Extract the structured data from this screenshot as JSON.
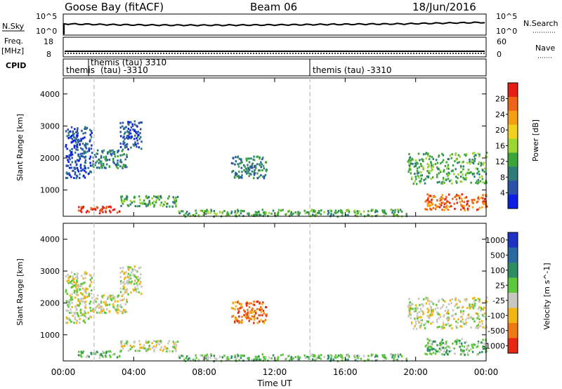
{
  "header": {
    "radar_title": "Goose Bay (fitACF)",
    "beam": "Beam 06",
    "date": "18/Jun/2016"
  },
  "strips": {
    "nsky_label": "N.Sky",
    "nsky_ticks": [
      "10^5",
      "10^0"
    ],
    "nsearch_label": "N.Search",
    "nsearch_ticks": [
      "10^5",
      "10^0"
    ],
    "freq_label": "Freq.",
    "freq_unit": "[MHz]",
    "freq_ticks": [
      "18",
      "8"
    ],
    "nave_label": "Nave",
    "nave_ticks": [
      "60",
      "0"
    ],
    "cpid_label": "CPID",
    "cpid_entries": [
      {
        "text": "themis",
        "start": 0.0
      },
      {
        "text": "themis (tau) 3310",
        "start": 1.75
      },
      {
        "text": "(tau) -3310",
        "start": 1.75,
        "row": 2
      },
      {
        "text": "themis (tau) -3310",
        "start": 14.0
      }
    ]
  },
  "chart_data": [
    {
      "type": "heatmap",
      "title": "",
      "quantity": "Power",
      "xlabel": "",
      "ylabel": "Slant Range [km]",
      "xlim": [
        0,
        24
      ],
      "ylim": [
        180,
        4500
      ],
      "x_ticks": [
        "00:00",
        "04:00",
        "08:00",
        "12:00",
        "16:00",
        "20:00",
        "00:00"
      ],
      "y_ticks": [
        1000,
        2000,
        3000,
        4000
      ],
      "colorbar": {
        "label": "Power [dB]",
        "ticks": [
          4,
          8,
          12,
          16,
          20,
          24,
          28
        ],
        "range": [
          0,
          32
        ],
        "colors": [
          "#0a1ee6",
          "#2a52a8",
          "#2e7c7a",
          "#3aa63a",
          "#9bd632",
          "#f0d21e",
          "#f5a014",
          "#ef6414",
          "#e61e14"
        ]
      },
      "regions": [
        {
          "t": [
            0.1,
            1.6
          ],
          "r": [
            1400,
            3000
          ],
          "level": 1
        },
        {
          "t": [
            1.6,
            3.6
          ],
          "r": [
            1700,
            2300
          ],
          "level": 2
        },
        {
          "t": [
            3.2,
            4.4
          ],
          "r": [
            2300,
            3200
          ],
          "level": 1
        },
        {
          "t": [
            0.8,
            3.2
          ],
          "r": [
            300,
            520
          ],
          "level": 8
        },
        {
          "t": [
            3.2,
            6.5
          ],
          "r": [
            500,
            850
          ],
          "level": 3
        },
        {
          "t": [
            6.5,
            19.5
          ],
          "r": [
            200,
            420
          ],
          "level": 3
        },
        {
          "t": [
            9.5,
            11.5
          ],
          "r": [
            1400,
            2100
          ],
          "level": 2
        },
        {
          "t": [
            19.5,
            24.0
          ],
          "r": [
            1200,
            2200
          ],
          "level": 3
        },
        {
          "t": [
            20.5,
            24.0
          ],
          "r": [
            400,
            900
          ],
          "level": 7
        }
      ]
    },
    {
      "type": "heatmap",
      "title": "",
      "quantity": "Velocity",
      "xlabel": "Time UT",
      "ylabel": "Slant Range [km]",
      "xlim": [
        0,
        24
      ],
      "ylim": [
        180,
        4500
      ],
      "x_ticks": [
        "00:00",
        "04:00",
        "08:00",
        "12:00",
        "16:00",
        "20:00",
        "00:00"
      ],
      "y_ticks": [
        1000,
        2000,
        3000,
        4000
      ],
      "colorbar": {
        "label": "Velocity [m s^-1]",
        "ticks": [
          1000,
          500,
          100,
          25,
          -25,
          -100,
          -500,
          -1000
        ],
        "colors": [
          "#1e32c8",
          "#2a6aa0",
          "#2e8c62",
          "#5cc83a",
          "#c8c8c0",
          "#f0b414",
          "#f07814",
          "#e62814"
        ]
      },
      "regions": [
        {
          "t": [
            0.1,
            1.6
          ],
          "r": [
            1400,
            3000
          ],
          "level": 4
        },
        {
          "t": [
            1.6,
            3.6
          ],
          "r": [
            1700,
            2300
          ],
          "level": 4
        },
        {
          "t": [
            3.2,
            4.4
          ],
          "r": [
            2300,
            3200
          ],
          "level": 4
        },
        {
          "t": [
            0.8,
            3.2
          ],
          "r": [
            300,
            520
          ],
          "level": 3
        },
        {
          "t": [
            3.2,
            6.5
          ],
          "r": [
            500,
            850
          ],
          "level": 4
        },
        {
          "t": [
            6.5,
            19.5
          ],
          "r": [
            200,
            420
          ],
          "level": 3
        },
        {
          "t": [
            9.5,
            11.5
          ],
          "r": [
            1400,
            2100
          ],
          "level": 6
        },
        {
          "t": [
            19.5,
            24.0
          ],
          "r": [
            1200,
            2200
          ],
          "level": 4
        },
        {
          "t": [
            20.5,
            24.0
          ],
          "r": [
            400,
            900
          ],
          "level": 3
        }
      ]
    }
  ]
}
